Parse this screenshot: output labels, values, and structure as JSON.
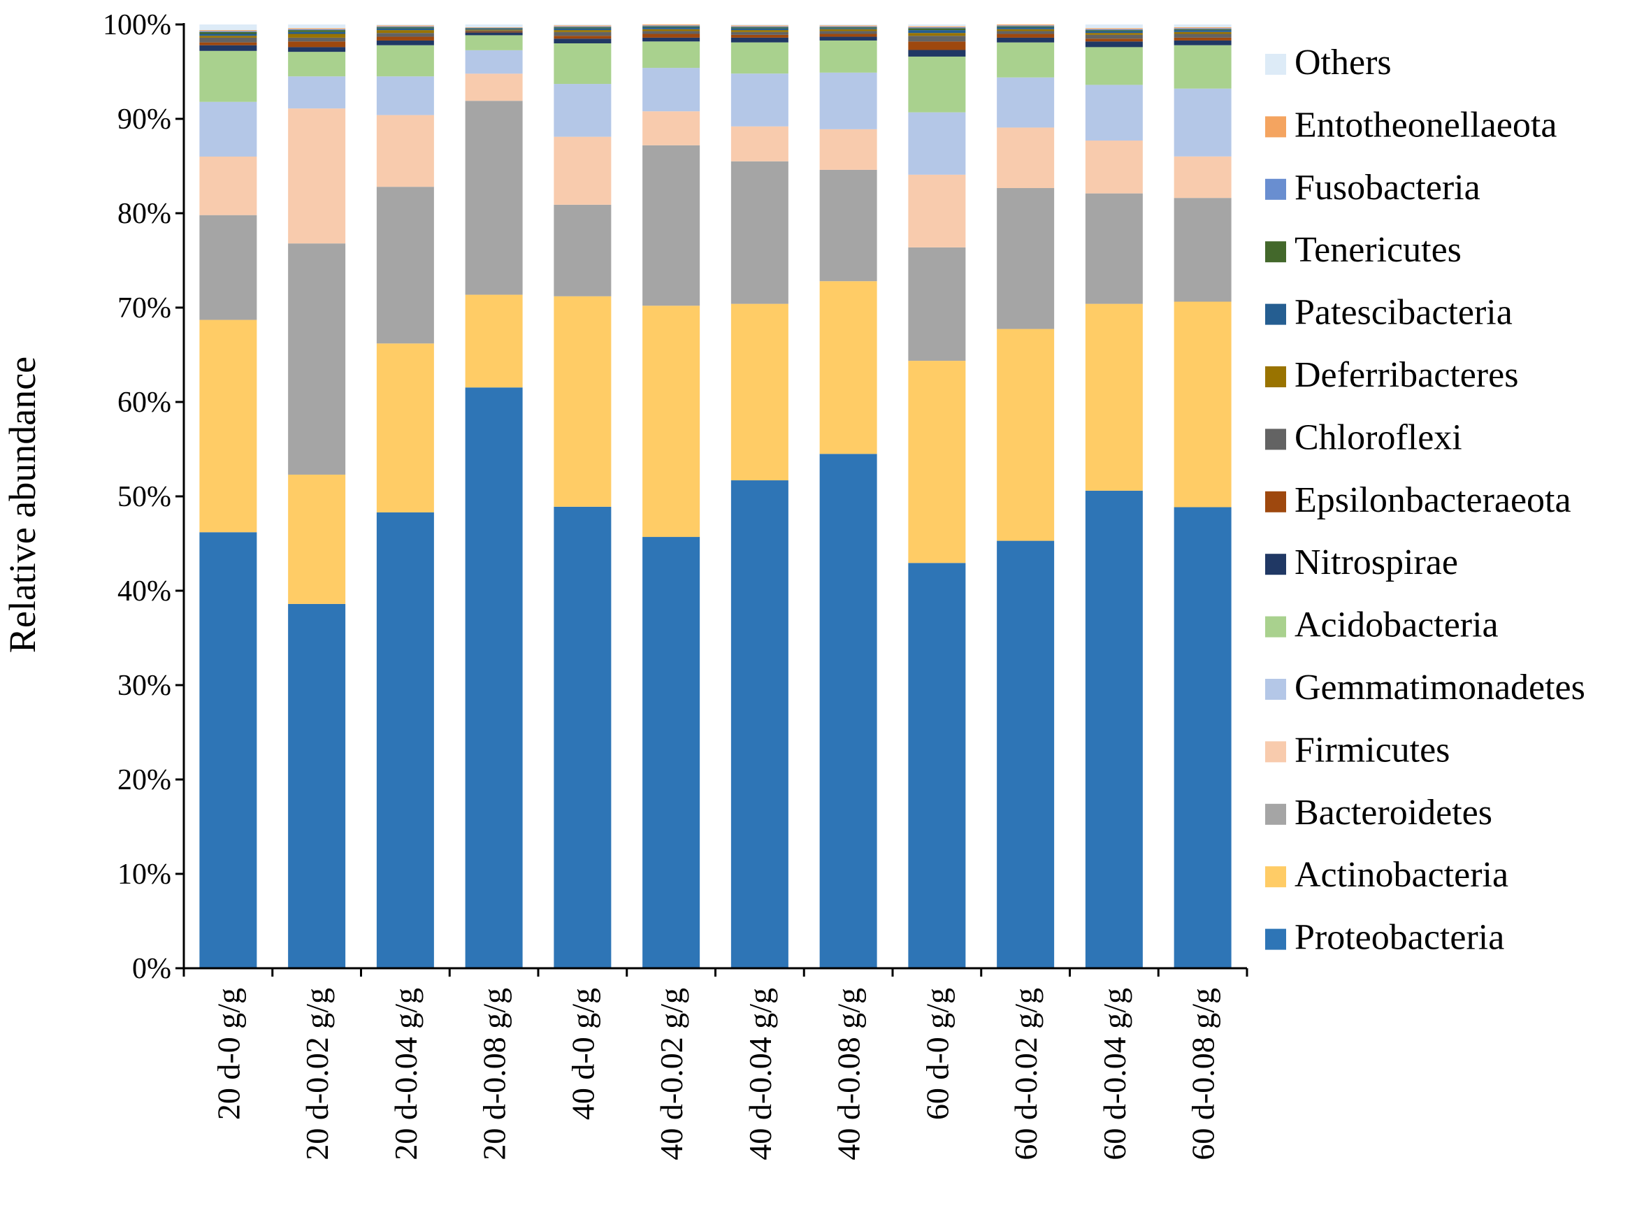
{
  "chart_data": {
    "type": "bar",
    "stacked": true,
    "title": "",
    "xlabel": "",
    "ylabel": "Relative abundance",
    "ylim": [
      0,
      100
    ],
    "y_ticks": [
      "0%",
      "10%",
      "20%",
      "30%",
      "40%",
      "50%",
      "60%",
      "70%",
      "80%",
      "90%",
      "100%"
    ],
    "legend_position": "right",
    "categories": [
      "20 d-0 g/g",
      "20 d-0.02 g/g",
      "20 d-0.04 g/g",
      "20 d-0.08 g/g",
      "40 d-0 g/g",
      "40 d-0.02 g/g",
      "40 d-0.04 g/g",
      "40 d-0.08 g/g",
      "60 d-0 g/g",
      "60 d-0.02 g/g",
      "60 d-0.04 g/g",
      "60 d-0.08 g/g"
    ],
    "series": [
      {
        "name": "Proteobacteria",
        "color": "#2E75B6",
        "values": [
          46.2,
          38.6,
          48.3,
          62.0,
          48.9,
          45.7,
          51.7,
          54.5,
          42.9,
          45.2,
          50.6,
          48.9
        ]
      },
      {
        "name": "Actinobacteria",
        "color": "#FFCC66",
        "values": [
          22.5,
          13.7,
          17.9,
          9.9,
          22.3,
          24.5,
          18.7,
          18.3,
          21.4,
          22.4,
          19.8,
          21.8
        ]
      },
      {
        "name": "Bacteroidetes",
        "color": "#A5A5A5",
        "values": [
          11.1,
          24.5,
          16.6,
          20.7,
          9.7,
          17.0,
          15.1,
          11.8,
          12.0,
          14.9,
          11.7,
          11.0
        ]
      },
      {
        "name": "Firmicutes",
        "color": "#F8CBAD",
        "values": [
          6.2,
          14.3,
          7.6,
          2.9,
          7.2,
          3.6,
          3.7,
          4.3,
          7.7,
          6.4,
          5.6,
          4.4
        ]
      },
      {
        "name": "Gemmatimonadetes",
        "color": "#B4C7E7",
        "values": [
          5.8,
          3.4,
          4.1,
          2.5,
          5.6,
          4.6,
          5.6,
          6.0,
          6.6,
          5.3,
          5.9,
          7.2
        ]
      },
      {
        "name": "Acidobacteria",
        "color": "#A9D18E",
        "values": [
          5.4,
          2.6,
          3.3,
          1.6,
          4.3,
          2.8,
          3.3,
          3.4,
          5.9,
          3.7,
          4.0,
          4.6
        ]
      },
      {
        "name": "Nitrospirae",
        "color": "#203864",
        "values": [
          0.6,
          0.5,
          0.5,
          0.3,
          0.5,
          0.4,
          0.5,
          0.4,
          0.7,
          0.5,
          0.6,
          0.5
        ]
      },
      {
        "name": "Epsilonbacteraeota",
        "color": "#9E480E",
        "values": [
          0.3,
          0.6,
          0.4,
          0.1,
          0.3,
          0.4,
          0.3,
          0.3,
          0.9,
          0.4,
          0.3,
          0.3
        ]
      },
      {
        "name": "Chloroflexi",
        "color": "#636363",
        "values": [
          0.5,
          0.4,
          0.4,
          0.1,
          0.4,
          0.3,
          0.3,
          0.3,
          0.6,
          0.3,
          0.4,
          0.4
        ]
      },
      {
        "name": "Deferribacteres",
        "color": "#997300",
        "values": [
          0.2,
          0.4,
          0.3,
          0.1,
          0.2,
          0.2,
          0.2,
          0.2,
          0.3,
          0.2,
          0.2,
          0.2
        ]
      },
      {
        "name": "Patescibacteria",
        "color": "#255E91",
        "values": [
          0.2,
          0.2,
          0.2,
          0.1,
          0.2,
          0.2,
          0.2,
          0.1,
          0.3,
          0.2,
          0.2,
          0.2
        ]
      },
      {
        "name": "Tenericutes",
        "color": "#43682B",
        "values": [
          0.2,
          0.2,
          0.1,
          0.05,
          0.1,
          0.1,
          0.1,
          0.1,
          0.2,
          0.1,
          0.1,
          0.1
        ]
      },
      {
        "name": "Fusobacteria",
        "color": "#698ED0",
        "values": [
          0.1,
          0.1,
          0.1,
          0.05,
          0.1,
          0.1,
          0.1,
          0.1,
          0.1,
          0.1,
          0.1,
          0.1
        ]
      },
      {
        "name": "Entotheonellaeota",
        "color": "#F4A460",
        "values": [
          0.1,
          0.1,
          0.1,
          0.05,
          0.1,
          0.1,
          0.1,
          0.1,
          0.1,
          0.1,
          0.1,
          0.1
        ]
      },
      {
        "name": "Others",
        "color": "#DDEBF7",
        "values": [
          0.6,
          0.4,
          0.1,
          0.3,
          0.1,
          0.0,
          0.1,
          0.1,
          0.2,
          0.0,
          0.4,
          0.3
        ]
      }
    ]
  }
}
